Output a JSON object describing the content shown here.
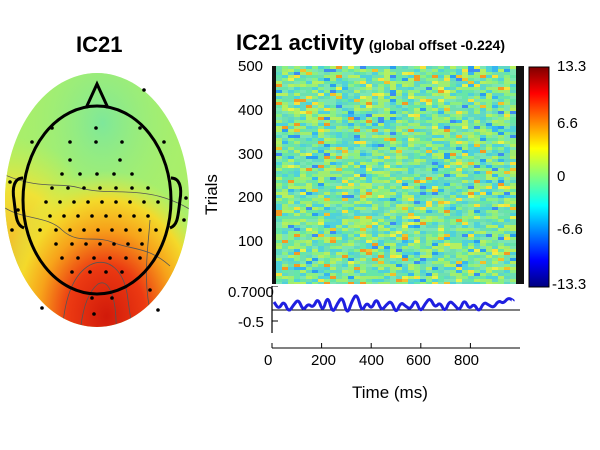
{
  "chart_data": [
    {
      "type": "heatmap",
      "panel": "scalp-map",
      "title": "IC21",
      "colormap": "jet",
      "maximum_region": "posterior-central (occipital-parietal)",
      "minimum_region": "none (background mostly green/cyan)"
    },
    {
      "type": "heatmap",
      "panel": "erp-image",
      "title": "IC21 activity",
      "subtitle": "(global offset -0.224)",
      "ylabel": "Trials",
      "ylim": [
        0,
        500
      ],
      "yticks": [
        "500",
        "400",
        "300",
        "200",
        "100"
      ],
      "colorbar": {
        "range": [
          -13.3,
          13.3
        ],
        "ticks": [
          "13.3",
          "6.6",
          "0",
          "-6.6",
          "-13.3"
        ]
      }
    },
    {
      "type": "line",
      "panel": "erp-trace",
      "ylim": [
        -0.5,
        0.7
      ],
      "yticks": [
        "0.7000",
        "-0.5"
      ],
      "xlabel": "Time (ms)",
      "xlim": [
        0,
        1000
      ],
      "xticks": [
        "0",
        "200",
        "400",
        "600",
        "800"
      ],
      "series": [
        {
          "color": "#1f1fe0",
          "x": [
            0,
            20,
            40,
            60,
            80,
            100,
            120,
            140,
            160,
            180,
            200,
            220,
            240,
            260,
            280,
            300,
            320,
            340,
            360,
            380,
            400,
            420,
            440,
            460,
            480,
            500,
            520,
            540,
            560,
            580,
            600,
            620,
            640,
            660,
            680,
            700,
            720,
            740,
            760,
            780,
            800,
            820,
            840,
            860,
            880,
            900,
            920,
            940,
            960,
            980
          ],
          "values": [
            0.15,
            -0.1,
            0.2,
            -0.2,
            0.05,
            0.25,
            -0.15,
            0.1,
            -0.05,
            0.3,
            -0.2,
            0.4,
            -0.25,
            0.1,
            0.35,
            -0.3,
            0.2,
            0.45,
            -0.2,
            0.15,
            -0.1,
            0.3,
            -0.15,
            0.05,
            0.2,
            -0.25,
            0.15,
            0.0,
            -0.1,
            0.25,
            -0.2,
            0.1,
            0.3,
            -0.05,
            0.15,
            -0.2,
            0.2,
            0.05,
            -0.15,
            0.25,
            -0.1,
            0.1,
            -0.2,
            0.15,
            0.05,
            -0.05,
            0.2,
            0.1,
            0.3,
            0.2
          ]
        }
      ]
    }
  ]
}
